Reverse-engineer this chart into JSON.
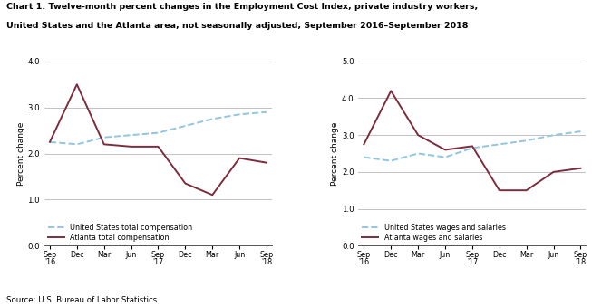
{
  "title_line1": "Chart 1. Twelve-month percent changes in the Employment Cost Index, private industry workers,",
  "title_line2": "United States and the Atlanta area, not seasonally adjusted, September 2016–September 2018",
  "source": "Source: U.S. Bureau of Labor Statistics.",
  "x_labels": [
    "Sep\n'16",
    "Dec",
    "Mar",
    "Jun",
    "Sep\n'17",
    "Dec",
    "Mar",
    "Jun",
    "Sep\n'18"
  ],
  "left_chart": {
    "ylabel": "Percent change",
    "ylim": [
      0.0,
      4.0
    ],
    "yticks": [
      0.0,
      1.0,
      2.0,
      3.0,
      4.0
    ],
    "us_total_comp": [
      2.25,
      2.2,
      2.35,
      2.4,
      2.45,
      2.6,
      2.75,
      2.85,
      2.9
    ],
    "atl_total_comp": [
      2.25,
      3.5,
      2.2,
      2.15,
      2.15,
      1.35,
      1.1,
      1.9,
      1.8
    ],
    "legend_us": "United States total compensation",
    "legend_atl": "Atlanta total compensation"
  },
  "right_chart": {
    "ylabel": "Percent change",
    "ylim": [
      0.0,
      5.0
    ],
    "yticks": [
      0.0,
      1.0,
      2.0,
      3.0,
      4.0,
      5.0
    ],
    "us_wages": [
      2.4,
      2.3,
      2.5,
      2.4,
      2.65,
      2.75,
      2.85,
      3.0,
      3.1
    ],
    "atl_wages": [
      2.75,
      4.2,
      3.0,
      2.6,
      2.7,
      1.5,
      1.5,
      2.0,
      2.1
    ],
    "legend_us": "United States wages and salaries",
    "legend_atl": "Atlanta wages and salaries"
  },
  "us_color": "#92C5DE",
  "atl_color": "#7B2D3E",
  "us_linestyle": "--",
  "atl_linestyle": "-",
  "linewidth": 1.4,
  "background_color": "#ffffff",
  "grid_color": "#aaaaaa"
}
